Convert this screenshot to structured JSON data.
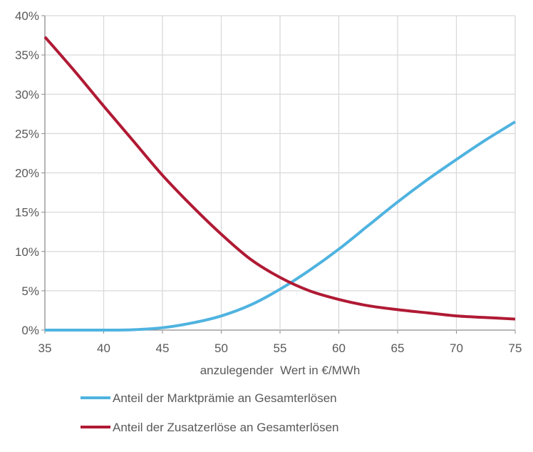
{
  "chart_data": {
    "type": "line",
    "title": "",
    "xlabel": "anzulegender  Wert in €/MWh",
    "ylabel": "",
    "xlim": [
      35,
      75
    ],
    "ylim": [
      0,
      40
    ],
    "x_ticks": [
      "35",
      "40",
      "45",
      "50",
      "55",
      "60",
      "65",
      "70",
      "75"
    ],
    "y_ticks": [
      "0%",
      "5%",
      "10%",
      "15%",
      "20%",
      "25%",
      "30%",
      "35%",
      "40%"
    ],
    "grid": true,
    "legend_position": "bottom",
    "x": [
      35,
      37.5,
      40,
      42.5,
      45,
      47.5,
      50,
      52.5,
      55,
      57.5,
      60,
      62.5,
      65,
      67.5,
      70,
      72.5,
      75
    ],
    "series": [
      {
        "name": "Anteil der Marktprämie an Gesamterlösen",
        "color": "#4fb3e0",
        "values": [
          0,
          0,
          0,
          0.05,
          0.3,
          0.9,
          1.8,
          3.2,
          5.2,
          7.6,
          10.3,
          13.3,
          16.3,
          19.1,
          21.7,
          24.2,
          26.5
        ]
      },
      {
        "name": "Anteil der Zusatzerlöse an Gesamterlösen",
        "color": "#b01a34",
        "values": [
          37.3,
          33.0,
          28.5,
          24.1,
          19.7,
          15.8,
          12.2,
          9.0,
          6.7,
          5.0,
          3.9,
          3.1,
          2.6,
          2.2,
          1.8,
          1.6,
          1.4
        ]
      }
    ]
  }
}
